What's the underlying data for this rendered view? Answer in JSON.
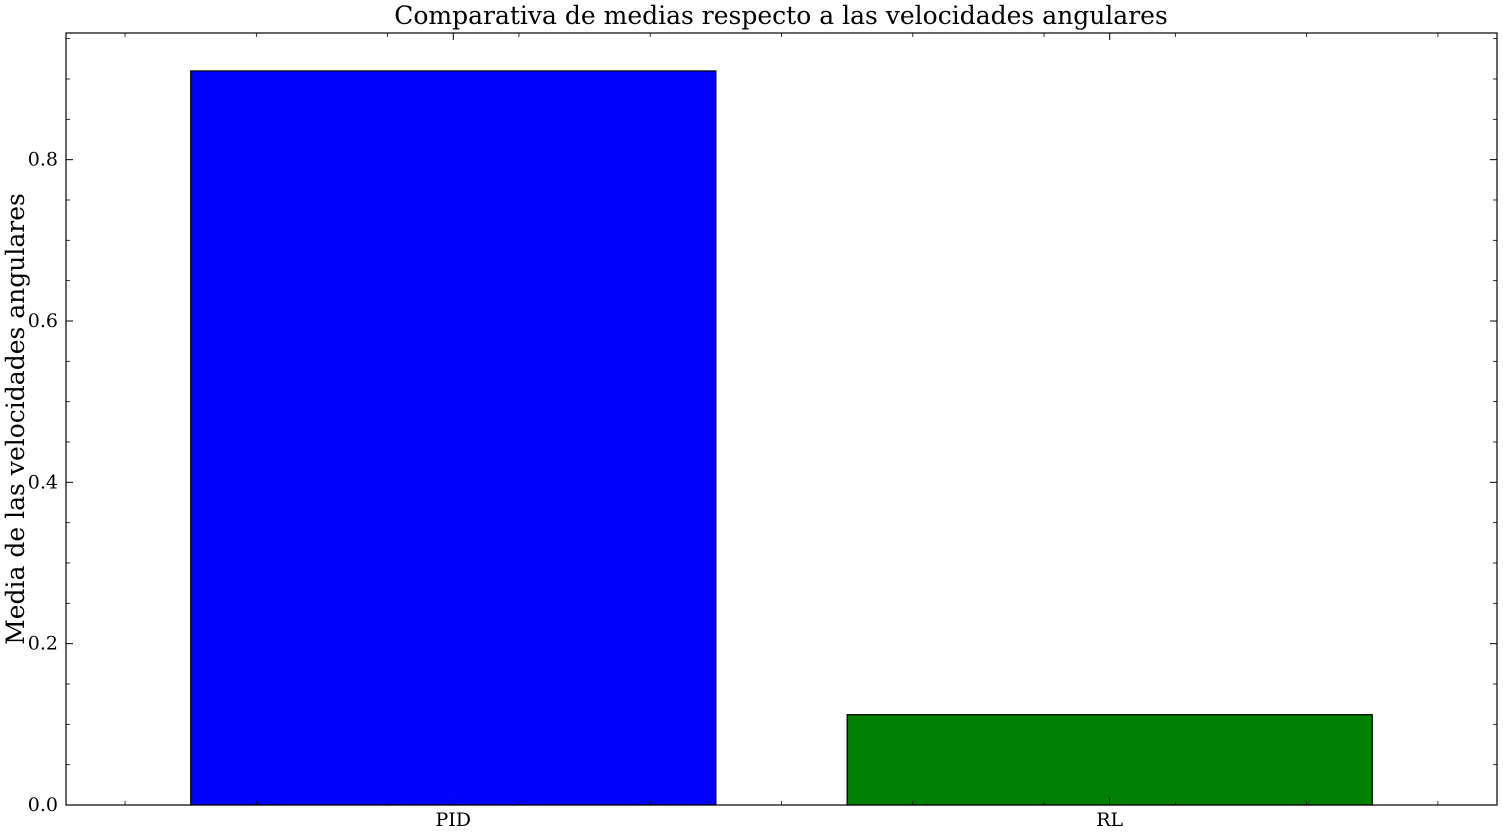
{
  "chart_data": {
    "type": "bar",
    "title": "Comparativa de medias respecto a las velocidades angulares",
    "xlabel": "",
    "ylabel": "Media de las velocidades angulares",
    "categories": [
      "PID",
      "RL"
    ],
    "values": [
      0.91,
      0.112
    ],
    "bar_colors": [
      "#0000ff",
      "#008000"
    ],
    "edge_color": "#000000",
    "ylim": [
      0,
      0.957
    ],
    "yticks": [
      0.0,
      0.2,
      0.4,
      0.6,
      0.8
    ],
    "ytick_labels": [
      "0.0",
      "0.2",
      "0.4",
      "0.6",
      "0.8"
    ],
    "grid": false,
    "legend": "none"
  }
}
